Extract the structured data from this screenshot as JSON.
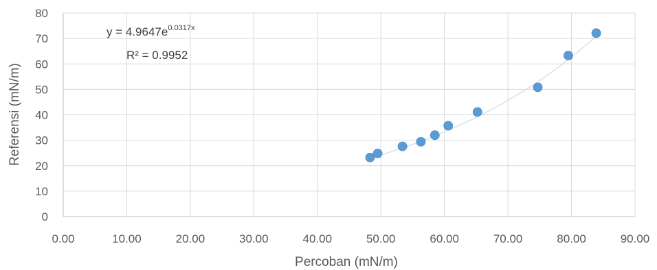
{
  "chart_data": {
    "type": "scatter",
    "title": "",
    "xlabel": "Percoban (mN/m)",
    "ylabel": "Referensi (mN/m)",
    "xlim": [
      0,
      90
    ],
    "ylim": [
      0,
      80
    ],
    "x_ticks": [
      "0.00",
      "10.00",
      "20.00",
      "30.00",
      "40.00",
      "50.00",
      "60.00",
      "70.00",
      "80.00",
      "90.00"
    ],
    "y_ticks": [
      "0",
      "10",
      "20",
      "30",
      "40",
      "50",
      "60",
      "70",
      "80"
    ],
    "grid": true,
    "legend": "none",
    "marker_color": "#5b9bd5",
    "trendline_color": "#c9dcef",
    "points": [
      {
        "x": 48.3,
        "y": 23.2
      },
      {
        "x": 49.5,
        "y": 24.8
      },
      {
        "x": 53.4,
        "y": 27.6
      },
      {
        "x": 56.3,
        "y": 29.4
      },
      {
        "x": 58.5,
        "y": 32.0
      },
      {
        "x": 60.6,
        "y": 35.7
      },
      {
        "x": 65.2,
        "y": 41.1
      },
      {
        "x": 74.7,
        "y": 50.8
      },
      {
        "x": 79.5,
        "y": 63.3
      },
      {
        "x": 83.9,
        "y": 72.1
      }
    ],
    "trendline": {
      "type": "exponential",
      "a": 4.9647,
      "b": 0.0317,
      "x_range": [
        48.3,
        83.9
      ],
      "equation_prefix": "y = 4.9647e",
      "equation_exponent": "0.0317x",
      "r_squared_label": "R² = 0.9952"
    }
  }
}
